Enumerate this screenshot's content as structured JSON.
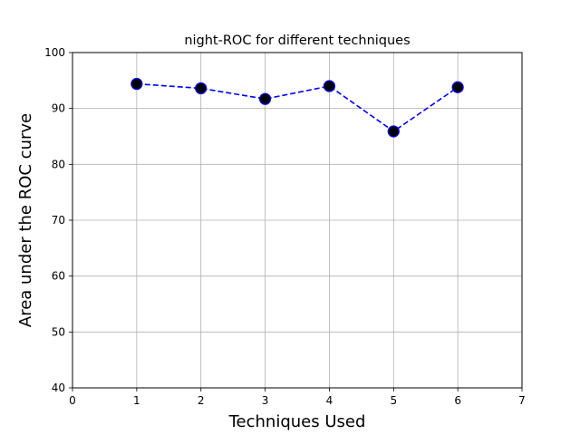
{
  "chart_data": {
    "type": "line",
    "title": "night-ROC for different techniques",
    "xlabel": "Techniques Used",
    "ylabel": "Area under the ROC curve",
    "xlim": [
      0,
      7
    ],
    "ylim": [
      40,
      100
    ],
    "xticks": [
      0,
      1,
      2,
      3,
      4,
      5,
      6,
      7
    ],
    "yticks": [
      40,
      50,
      60,
      70,
      80,
      90,
      100
    ],
    "grid": true,
    "series": [
      {
        "x": [
          1,
          2,
          3,
          4,
          5,
          6
        ],
        "values": [
          94.4,
          93.6,
          91.7,
          94.0,
          85.9,
          93.8
        ],
        "line_color": "#0000ff",
        "line_style": "dashed",
        "marker": "circle",
        "marker_face_color": "#000000",
        "marker_edge_color": "#0000ff"
      }
    ]
  }
}
